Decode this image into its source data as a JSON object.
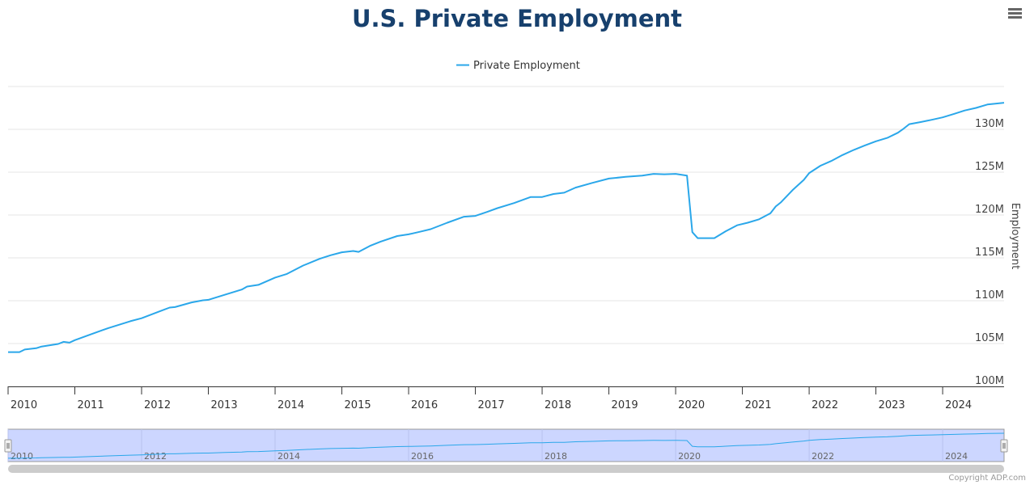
{
  "chart_data": {
    "type": "line",
    "title": "U.S. Private Employment",
    "ylabel": "Employment",
    "xlabel": "",
    "ylim": [
      100,
      135
    ],
    "xlim": [
      2010.0,
      2024.92
    ],
    "y_ticks": [
      {
        "value": 100,
        "label": "100M"
      },
      {
        "value": 105,
        "label": "105M"
      },
      {
        "value": 110,
        "label": "110M"
      },
      {
        "value": 115,
        "label": "115M"
      },
      {
        "value": 120,
        "label": "120M"
      },
      {
        "value": 125,
        "label": "125M"
      },
      {
        "value": 130,
        "label": "130M"
      }
    ],
    "x_ticks": [
      "2010",
      "2011",
      "2012",
      "2013",
      "2014",
      "2015",
      "2016",
      "2017",
      "2018",
      "2019",
      "2020",
      "2021",
      "2022",
      "2023",
      "2024"
    ],
    "navigator_ticks": [
      "2010",
      "2012",
      "2014",
      "2016",
      "2018",
      "2020",
      "2022",
      "2024"
    ],
    "legend": {
      "position": "top-center",
      "entries": [
        "Private Employment"
      ]
    },
    "grid": true,
    "series": [
      {
        "name": "Private Employment",
        "color": "#2aa7ea",
        "points": [
          [
            2010.0,
            104.0
          ],
          [
            2010.17,
            104.0
          ],
          [
            2010.25,
            104.3
          ],
          [
            2010.42,
            104.45
          ],
          [
            2010.5,
            104.65
          ],
          [
            2010.75,
            104.95
          ],
          [
            2010.83,
            105.2
          ],
          [
            2010.92,
            105.1
          ],
          [
            2011.0,
            105.4
          ],
          [
            2011.25,
            106.1
          ],
          [
            2011.5,
            106.8
          ],
          [
            2011.83,
            107.6
          ],
          [
            2012.0,
            107.95
          ],
          [
            2012.25,
            108.7
          ],
          [
            2012.42,
            109.2
          ],
          [
            2012.5,
            109.25
          ],
          [
            2012.75,
            109.8
          ],
          [
            2012.92,
            110.05
          ],
          [
            2013.0,
            110.1
          ],
          [
            2013.25,
            110.7
          ],
          [
            2013.5,
            111.3
          ],
          [
            2013.58,
            111.65
          ],
          [
            2013.75,
            111.85
          ],
          [
            2014.0,
            112.7
          ],
          [
            2014.17,
            113.1
          ],
          [
            2014.42,
            114.1
          ],
          [
            2014.67,
            114.9
          ],
          [
            2014.83,
            115.3
          ],
          [
            2015.0,
            115.65
          ],
          [
            2015.17,
            115.8
          ],
          [
            2015.25,
            115.7
          ],
          [
            2015.42,
            116.4
          ],
          [
            2015.58,
            116.9
          ],
          [
            2015.83,
            117.55
          ],
          [
            2016.0,
            117.75
          ],
          [
            2016.17,
            118.05
          ],
          [
            2016.33,
            118.35
          ],
          [
            2016.58,
            119.1
          ],
          [
            2016.83,
            119.8
          ],
          [
            2017.0,
            119.9
          ],
          [
            2017.17,
            120.35
          ],
          [
            2017.33,
            120.8
          ],
          [
            2017.58,
            121.4
          ],
          [
            2017.83,
            122.1
          ],
          [
            2018.0,
            122.1
          ],
          [
            2018.17,
            122.45
          ],
          [
            2018.33,
            122.6
          ],
          [
            2018.5,
            123.2
          ],
          [
            2018.75,
            123.75
          ],
          [
            2019.0,
            124.25
          ],
          [
            2019.25,
            124.45
          ],
          [
            2019.5,
            124.6
          ],
          [
            2019.67,
            124.8
          ],
          [
            2019.83,
            124.75
          ],
          [
            2020.0,
            124.8
          ],
          [
            2020.17,
            124.6
          ],
          [
            2020.25,
            118.0
          ],
          [
            2020.33,
            117.3
          ],
          [
            2020.58,
            117.3
          ],
          [
            2020.75,
            118.1
          ],
          [
            2020.92,
            118.8
          ],
          [
            2021.08,
            119.1
          ],
          [
            2021.25,
            119.5
          ],
          [
            2021.42,
            120.2
          ],
          [
            2021.5,
            121.0
          ],
          [
            2021.58,
            121.5
          ],
          [
            2021.75,
            122.9
          ],
          [
            2021.92,
            124.1
          ],
          [
            2022.0,
            124.9
          ],
          [
            2022.17,
            125.75
          ],
          [
            2022.33,
            126.3
          ],
          [
            2022.5,
            127.0
          ],
          [
            2022.67,
            127.6
          ],
          [
            2022.83,
            128.1
          ],
          [
            2023.0,
            128.6
          ],
          [
            2023.17,
            129.0
          ],
          [
            2023.33,
            129.6
          ],
          [
            2023.42,
            130.1
          ],
          [
            2023.5,
            130.6
          ],
          [
            2023.67,
            130.85
          ],
          [
            2023.83,
            131.1
          ],
          [
            2024.0,
            131.4
          ],
          [
            2024.17,
            131.8
          ],
          [
            2024.33,
            132.2
          ],
          [
            2024.5,
            132.5
          ],
          [
            2024.67,
            132.9
          ],
          [
            2024.92,
            133.1
          ]
        ]
      }
    ]
  },
  "ui": {
    "menu_icon": "hamburger-menu-icon",
    "copyright": "Copyright ADP.com",
    "colors": {
      "title": "#17406d",
      "line": "#2aa7ea",
      "navigator_fill": "#ccd6ff",
      "grid": "#e6e6e6"
    }
  }
}
